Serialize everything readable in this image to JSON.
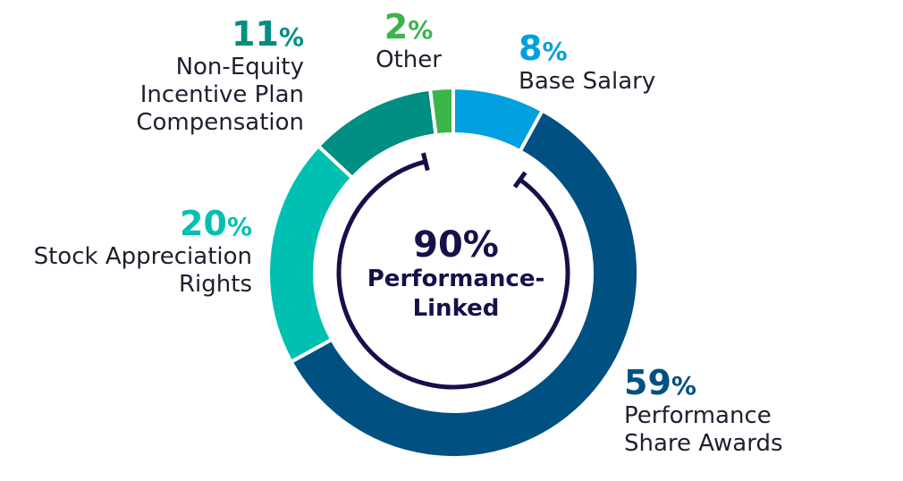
{
  "chart_data": {
    "type": "pie",
    "variant": "donut",
    "slices": [
      {
        "label": "Base Salary",
        "value": 8,
        "pct_text": "8",
        "color": "#00a0e0"
      },
      {
        "label": "Performance Share Awards",
        "value": 59,
        "pct_text": "59",
        "color": "#005082"
      },
      {
        "label": "Stock Appreciation Rights",
        "value": 20,
        "pct_text": "20",
        "color": "#00c1b1"
      },
      {
        "label": "Non-Equity Incentive Plan Compensation",
        "value": 11,
        "pct_text": "11",
        "color": "#008f82"
      },
      {
        "label": "Other",
        "value": 2,
        "pct_text": "2",
        "color": "#3bb54a"
      }
    ],
    "center": {
      "value_text": "90%",
      "caption_line1": "Performance-",
      "caption_line2": "Linked"
    },
    "percent_symbol": "%",
    "bracket_color": "#14114a"
  },
  "labels": {
    "base_salary": {
      "pct": "8",
      "lines": [
        "Base Salary"
      ],
      "color": "#00a0e0"
    },
    "performance_share": {
      "pct": "59",
      "lines": [
        "Performance",
        "Share Awards"
      ],
      "color": "#005082"
    },
    "sar": {
      "pct": "20",
      "lines": [
        "Stock Appreciation",
        "Rights"
      ],
      "color": "#00c1b1"
    },
    "neip": {
      "pct": "11",
      "lines": [
        "Non-Equity",
        "Incentive Plan",
        "Compensation"
      ],
      "color": "#008f82"
    },
    "other": {
      "pct": "2",
      "lines": [
        "Other"
      ],
      "color": "#3bb54a"
    }
  }
}
